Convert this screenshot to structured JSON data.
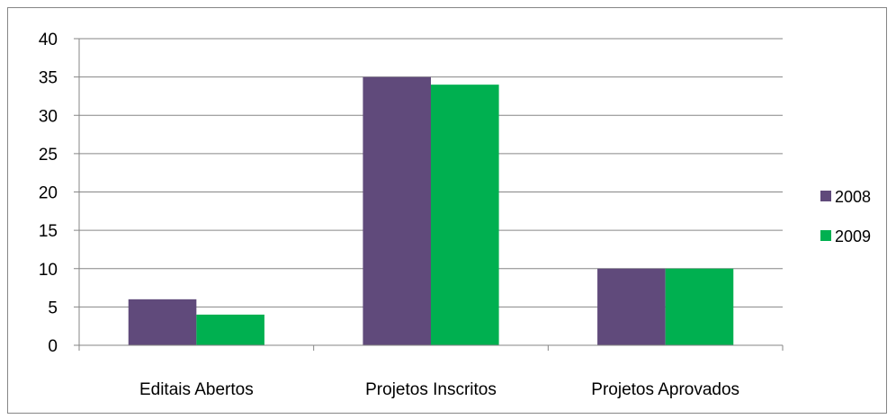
{
  "chart_data": {
    "type": "bar",
    "categories": [
      "Editais  Abertos",
      "Projetos Inscritos",
      "Projetos Aprovados"
    ],
    "series": [
      {
        "name": "2008",
        "values": [
          6,
          35,
          10
        ],
        "color": "#604a7b"
      },
      {
        "name": "2009",
        "values": [
          4,
          34,
          10
        ],
        "color": "#00b050"
      }
    ],
    "ylim": [
      0,
      40
    ],
    "yticks": [
      0,
      5,
      10,
      15,
      20,
      25,
      30,
      35,
      40
    ],
    "grid": true,
    "legend_position": "right",
    "title": "",
    "xlabel": "",
    "ylabel": ""
  }
}
